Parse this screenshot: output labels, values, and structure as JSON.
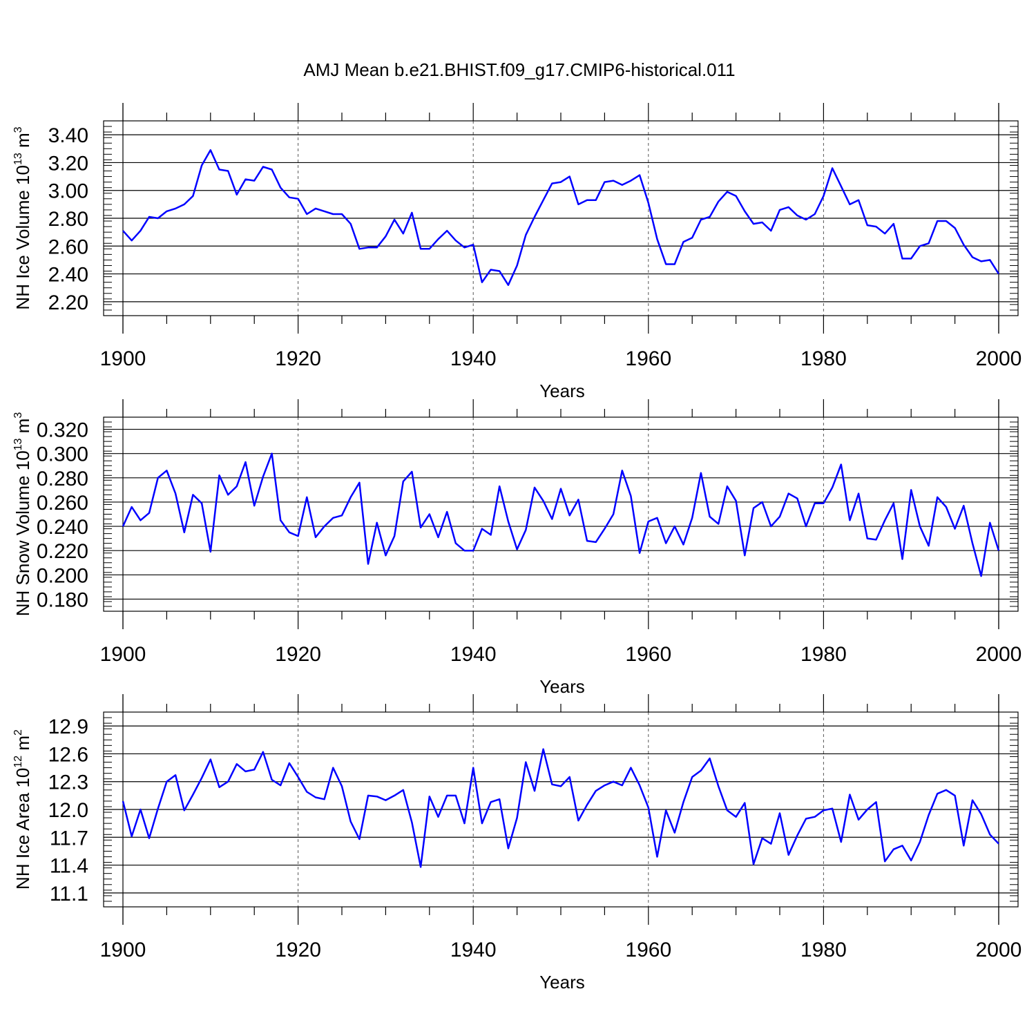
{
  "title": "AMJ Mean b.e21.BHIST.f09_g17.CMIP6-historical.011",
  "chart_data": [
    {
      "type": "line",
      "xlabel": "Years",
      "ylabel": "NH Ice Volume 10",
      "ylabel_exp": "13",
      "ylabel_unit": "m",
      "ylabel_unit_exp": "3",
      "xlim": [
        1900,
        2000
      ],
      "ylim": [
        2.1,
        3.5
      ],
      "yticks": [
        2.2,
        2.4,
        2.6,
        2.8,
        3.0,
        3.2,
        3.4
      ],
      "ytick_labels": [
        "2.20",
        "2.40",
        "2.60",
        "2.80",
        "3.00",
        "3.20",
        "3.40"
      ],
      "xticks": [
        1900,
        1920,
        1940,
        1960,
        1980,
        2000
      ],
      "xtick_labels": [
        "1900",
        "1920",
        "1940",
        "1960",
        "1980",
        "2000"
      ],
      "grid_x": [
        1920,
        1940,
        1960,
        1980
      ],
      "line_color": "#0000ff",
      "x_start": 1900,
      "values": [
        2.71,
        2.64,
        2.71,
        2.81,
        2.8,
        2.85,
        2.87,
        2.9,
        2.96,
        3.18,
        3.29,
        3.15,
        3.14,
        2.97,
        3.08,
        3.07,
        3.17,
        3.15,
        3.02,
        2.95,
        2.94,
        2.83,
        2.87,
        2.85,
        2.83,
        2.83,
        2.76,
        2.58,
        2.59,
        2.59,
        2.67,
        2.79,
        2.69,
        2.84,
        2.58,
        2.58,
        2.65,
        2.71,
        2.64,
        2.59,
        2.61,
        2.34,
        2.43,
        2.42,
        2.32,
        2.46,
        2.68,
        2.81,
        2.93,
        3.05,
        3.06,
        3.1,
        2.9,
        2.93,
        2.93,
        3.06,
        3.07,
        3.04,
        3.07,
        3.11,
        2.91,
        2.65,
        2.47,
        2.47,
        2.63,
        2.66,
        2.79,
        2.81,
        2.92,
        2.99,
        2.96,
        2.85,
        2.76,
        2.77,
        2.71,
        2.86,
        2.88,
        2.82,
        2.79,
        2.83,
        2.96,
        3.16,
        3.03,
        2.9,
        2.93,
        2.75,
        2.74,
        2.69,
        2.76,
        2.51,
        2.51,
        2.6,
        2.62,
        2.78,
        2.78,
        2.73,
        2.61,
        2.52,
        2.49,
        2.5,
        2.4
      ]
    },
    {
      "type": "line",
      "xlabel": "Years",
      "ylabel": "NH Snow Volume 10",
      "ylabel_exp": "13",
      "ylabel_unit": "m",
      "ylabel_unit_exp": "3",
      "xlim": [
        1900,
        2000
      ],
      "ylim": [
        0.17,
        0.33
      ],
      "yticks": [
        0.18,
        0.2,
        0.22,
        0.24,
        0.26,
        0.28,
        0.3,
        0.32
      ],
      "ytick_labels": [
        "0.180",
        "0.200",
        "0.220",
        "0.240",
        "0.260",
        "0.280",
        "0.300",
        "0.320"
      ],
      "xticks": [
        1900,
        1920,
        1940,
        1960,
        1980,
        2000
      ],
      "xtick_labels": [
        "1900",
        "1920",
        "1940",
        "1960",
        "1980",
        "2000"
      ],
      "grid_x": [
        1920,
        1940,
        1960,
        1980
      ],
      "line_color": "#0000ff",
      "x_start": 1900,
      "values": [
        0.24,
        0.256,
        0.245,
        0.251,
        0.28,
        0.286,
        0.267,
        0.235,
        0.266,
        0.259,
        0.219,
        0.282,
        0.266,
        0.273,
        0.293,
        0.257,
        0.281,
        0.3,
        0.245,
        0.235,
        0.232,
        0.264,
        0.231,
        0.24,
        0.247,
        0.249,
        0.264,
        0.276,
        0.209,
        0.243,
        0.216,
        0.232,
        0.277,
        0.285,
        0.239,
        0.25,
        0.231,
        0.252,
        0.226,
        0.22,
        0.22,
        0.238,
        0.233,
        0.273,
        0.244,
        0.221,
        0.237,
        0.272,
        0.261,
        0.246,
        0.271,
        0.249,
        0.262,
        0.228,
        0.227,
        0.238,
        0.25,
        0.286,
        0.265,
        0.218,
        0.244,
        0.247,
        0.226,
        0.24,
        0.225,
        0.247,
        0.284,
        0.248,
        0.242,
        0.273,
        0.261,
        0.216,
        0.255,
        0.26,
        0.24,
        0.248,
        0.267,
        0.263,
        0.24,
        0.259,
        0.259,
        0.272,
        0.291,
        0.245,
        0.267,
        0.23,
        0.229,
        0.245,
        0.259,
        0.213,
        0.27,
        0.24,
        0.224,
        0.264,
        0.256,
        0.238,
        0.257,
        0.226,
        0.199,
        0.243,
        0.22
      ]
    },
    {
      "type": "line",
      "xlabel": "Years",
      "ylabel": "NH Ice Area 10",
      "ylabel_exp": "12",
      "ylabel_unit": "m",
      "ylabel_unit_exp": "2",
      "xlim": [
        1900,
        2000
      ],
      "ylim": [
        10.95,
        13.05
      ],
      "yticks": [
        11.1,
        11.4,
        11.7,
        12.0,
        12.3,
        12.6,
        12.9
      ],
      "ytick_labels": [
        "11.1",
        "11.4",
        "11.7",
        "12.0",
        "12.3",
        "12.6",
        "12.9"
      ],
      "xticks": [
        1900,
        1920,
        1940,
        1960,
        1980,
        2000
      ],
      "xtick_labels": [
        "1900",
        "1920",
        "1940",
        "1960",
        "1980",
        "2000"
      ],
      "grid_x": [
        1920,
        1940,
        1960,
        1980
      ],
      "line_color": "#0000ff",
      "x_start": 1900,
      "values": [
        12.09,
        11.71,
        12.0,
        11.69,
        12.01,
        12.3,
        12.37,
        11.99,
        12.16,
        12.34,
        12.54,
        12.24,
        12.3,
        12.49,
        12.41,
        12.43,
        12.62,
        12.32,
        12.26,
        12.5,
        12.35,
        12.19,
        12.13,
        12.11,
        12.45,
        12.25,
        11.87,
        11.68,
        12.15,
        12.14,
        12.1,
        12.15,
        12.21,
        11.86,
        11.38,
        12.14,
        11.92,
        12.15,
        12.15,
        11.85,
        12.45,
        11.85,
        12.08,
        12.11,
        11.58,
        11.91,
        12.51,
        12.2,
        12.65,
        12.27,
        12.25,
        12.35,
        11.88,
        12.05,
        12.2,
        12.26,
        12.3,
        12.26,
        12.45,
        12.26,
        12.02,
        11.49,
        11.99,
        11.75,
        12.08,
        12.35,
        12.42,
        12.55,
        12.25,
        11.99,
        11.92,
        12.07,
        11.41,
        11.69,
        11.63,
        11.96,
        11.51,
        11.72,
        11.9,
        11.92,
        11.99,
        12.01,
        11.65,
        12.16,
        11.89,
        12.0,
        12.08,
        11.44,
        11.57,
        11.61,
        11.45,
        11.65,
        11.94,
        12.17,
        12.21,
        12.15,
        11.61,
        12.1,
        11.95,
        11.73,
        11.63
      ]
    }
  ]
}
